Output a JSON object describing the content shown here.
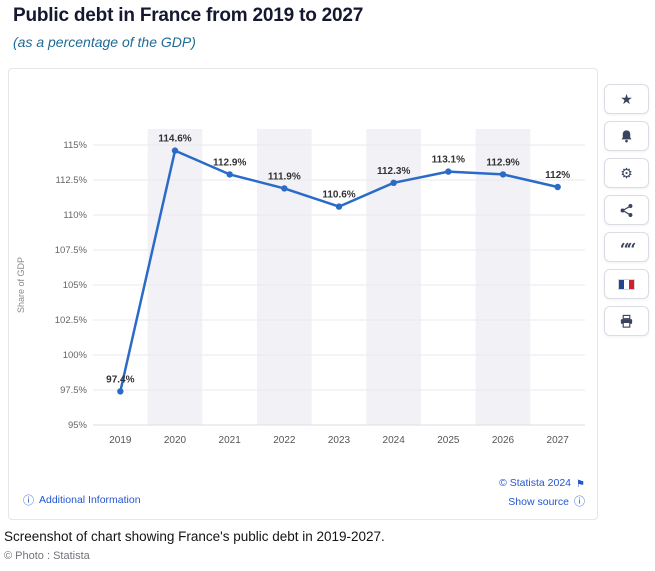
{
  "header": {
    "title": "Public debt in France from 2019 to 2027",
    "subtitle": "(as a percentage of the GDP)"
  },
  "chart_data": {
    "type": "line",
    "title": "Public debt in France from 2019 to 2027",
    "x": [
      "2019",
      "2020",
      "2021",
      "2022",
      "2023",
      "2024",
      "2025",
      "2026",
      "2027"
    ],
    "values": [
      97.4,
      114.6,
      112.9,
      111.9,
      110.6,
      112.3,
      113.1,
      112.9,
      112
    ],
    "point_labels": [
      "97.4%",
      "114.6%",
      "112.9%",
      "111.9%",
      "110.6%",
      "112.3%",
      "113.1%",
      "112.9%",
      "112%"
    ],
    "ylabel": "Share of GDP",
    "xlabel": "",
    "yticks": [
      95,
      97.5,
      100,
      102.5,
      105,
      107.5,
      110,
      112.5,
      115
    ],
    "ytick_labels": [
      "95%",
      "97.5%",
      "100%",
      "102.5%",
      "105%",
      "107.5%",
      "110%",
      "112.5%",
      "115%"
    ],
    "ylim": [
      95,
      116.5
    ],
    "grid": true,
    "legend": false,
    "line_color": "#2b6bc8",
    "colors": {
      "band": "#f1f1f6",
      "grid": "#eaeaef",
      "axis_text": "#666666",
      "x_text": "#555555",
      "label_text": "#333333",
      "ylabel_text": "#8a8a90"
    }
  },
  "footer": {
    "additional_info": "Additional Information",
    "statista": "© Statista 2024",
    "show_source": "Show source"
  },
  "icons": {
    "info": "ⓘ",
    "banner": "⚑",
    "star": "★",
    "gear": "⚙",
    "quote": "““"
  },
  "caption": {
    "text": "Screenshot of chart showing France's public debt in 2019-2027.",
    "credit": "© Photo : Statista"
  }
}
